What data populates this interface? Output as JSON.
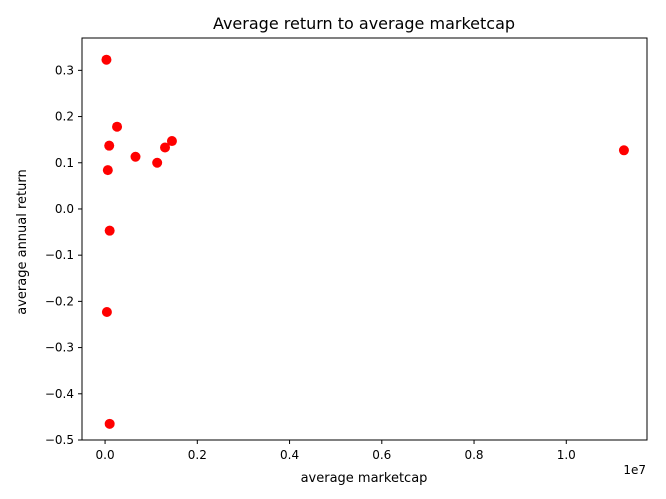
{
  "chart_data": {
    "type": "scatter",
    "title": "Average return to average marketcap",
    "xlabel": "average marketcap",
    "ylabel": "average annual return",
    "x_offset_text": "1e7",
    "x_scale": 10000000,
    "xlim": [
      -500000,
      11750000
    ],
    "ylim": [
      -0.5,
      0.37
    ],
    "x_ticks": [
      0,
      2000000,
      4000000,
      6000000,
      8000000,
      10000000
    ],
    "x_tick_labels": [
      "0.0",
      "0.2",
      "0.4",
      "0.6",
      "0.8",
      "1.0"
    ],
    "y_ticks": [
      0.3,
      0.2,
      0.1,
      0.0,
      -0.1,
      -0.2,
      -0.3,
      -0.4,
      -0.5
    ],
    "y_tick_labels": [
      "0.3",
      "0.2",
      "0.1",
      "0.0",
      "−0.1",
      "−0.2",
      "−0.3",
      "−0.4",
      "−0.5"
    ],
    "grid": false,
    "legend": null,
    "marker_color": "#ff0000",
    "series": [
      {
        "points": [
          {
            "x": 30000,
            "y": 0.323
          },
          {
            "x": 260000,
            "y": 0.178
          },
          {
            "x": 90000,
            "y": 0.137
          },
          {
            "x": 1450000,
            "y": 0.147
          },
          {
            "x": 1300000,
            "y": 0.133
          },
          {
            "x": 660000,
            "y": 0.113
          },
          {
            "x": 1130000,
            "y": 0.1
          },
          {
            "x": 60000,
            "y": 0.084
          },
          {
            "x": 11250000,
            "y": 0.127
          },
          {
            "x": 100000,
            "y": -0.047
          },
          {
            "x": 40000,
            "y": -0.223
          },
          {
            "x": 100000,
            "y": -0.465
          }
        ]
      }
    ]
  }
}
